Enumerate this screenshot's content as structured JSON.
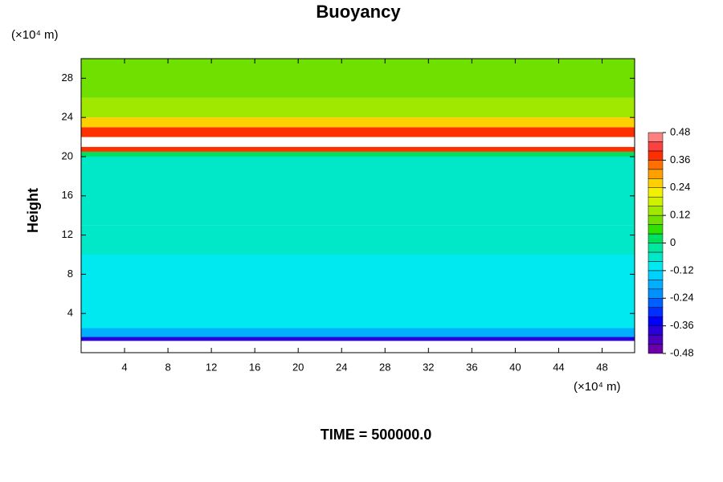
{
  "chart_data": {
    "type": "heatmap",
    "title": "Buoyancy",
    "y_unit": "(×10⁴ m)",
    "x_unit": "(×10⁴ m)",
    "ylabel": "Height",
    "annotation": "TIME = 500000.0",
    "xlim": [
      0,
      51
    ],
    "xticks": [
      4,
      8,
      12,
      16,
      20,
      24,
      28,
      32,
      36,
      40,
      44,
      48
    ],
    "ylim": [
      0,
      30
    ],
    "yticks": [
      4,
      8,
      12,
      16,
      20,
      24,
      28
    ],
    "ybins": [
      0,
      1.2,
      1.6,
      2.5,
      10,
      13,
      20,
      20.5,
      21,
      22,
      23,
      24,
      26,
      30
    ],
    "values": [
      null,
      -0.38,
      -0.16,
      -0.1,
      -0.06,
      -0.07,
      0.04,
      0.4,
      0.5,
      0.38,
      0.26,
      0.14,
      0.09
    ],
    "colorbar": {
      "levels": [
        -0.48,
        -0.44,
        -0.4,
        -0.36,
        -0.32,
        -0.28,
        -0.24,
        -0.2,
        -0.16,
        -0.12,
        -0.08,
        -0.04,
        0,
        0.04,
        0.08,
        0.12,
        0.16,
        0.2,
        0.24,
        0.28,
        0.32,
        0.36,
        0.4,
        0.44,
        0.48
      ],
      "colors": [
        "#6a00a8",
        "#4b00c0",
        "#2a00d8",
        "#0000ff",
        "#0030ff",
        "#0060ff",
        "#0090ff",
        "#00b0ff",
        "#00d0ff",
        "#00e8f0",
        "#00e8c8",
        "#00e8a0",
        "#00e060",
        "#30e000",
        "#70e000",
        "#a0e800",
        "#d0f000",
        "#f0f000",
        "#ffd000",
        "#ffa000",
        "#ff7000",
        "#ff3000",
        "#ff4040",
        "#ff8080"
      ],
      "over_color": "#ffffff",
      "ticks": [
        -0.48,
        -0.36,
        -0.24,
        -0.12,
        0,
        0.12,
        0.24,
        0.36,
        0.48
      ]
    }
  }
}
